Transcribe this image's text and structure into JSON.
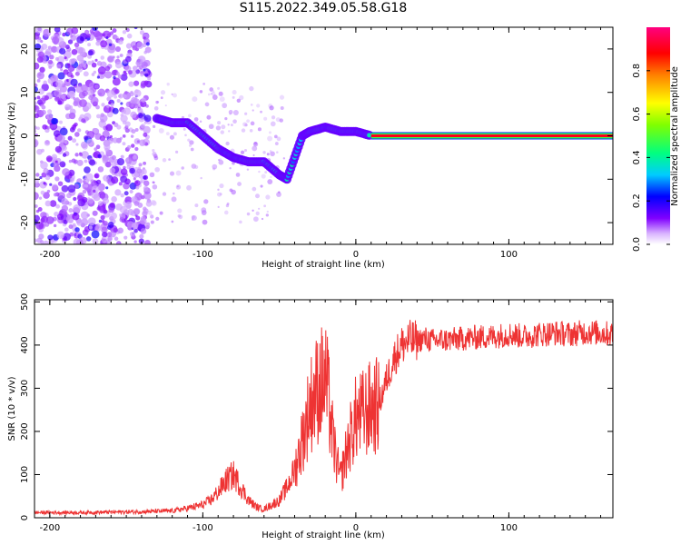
{
  "title": "S115.2022.349.05.58.G18",
  "chart_data": [
    {
      "type": "heatmap",
      "title": "S115.2022.349.05.58.G18",
      "xlabel": "Height of straight line (km)",
      "ylabel": "Frequency (Hz)",
      "xlim": [
        -210,
        168
      ],
      "ylim": [
        -25,
        25
      ],
      "xticks": [
        -200,
        -100,
        0,
        100
      ],
      "xtick_labels": [
        "-200",
        "-100",
        "0",
        "100"
      ],
      "yticks": [
        -20,
        -10,
        0,
        10,
        20
      ],
      "ytick_labels": [
        "-20",
        "-10",
        "0",
        "10",
        "20"
      ],
      "colorbar": {
        "label": "Normalized spectral amplitude",
        "range": [
          0,
          1
        ],
        "ticks": [
          0.0,
          0.2,
          0.4,
          0.6,
          0.8
        ],
        "tick_labels": [
          "0.0",
          "0.2",
          "0.4",
          "0.6",
          "0.8"
        ],
        "colors": [
          "#ffffff",
          "#8000ff",
          "#0000ff",
          "#00ffff",
          "#00ff00",
          "#ffff00",
          "#ff0000",
          "#ff00ff"
        ]
      },
      "ridge": [
        [
          -130,
          4
        ],
        [
          -120,
          3
        ],
        [
          -110,
          3
        ],
        [
          -100,
          0
        ],
        [
          -90,
          -3
        ],
        [
          -80,
          -5
        ],
        [
          -70,
          -6
        ],
        [
          -60,
          -6
        ],
        [
          -50,
          -9
        ],
        [
          -45,
          -10
        ],
        [
          -40,
          -5
        ],
        [
          -35,
          0
        ],
        [
          -30,
          1
        ],
        [
          -20,
          2
        ],
        [
          -10,
          1
        ],
        [
          0,
          1
        ],
        [
          10,
          0
        ],
        [
          30,
          0
        ],
        [
          60,
          0
        ],
        [
          100,
          0
        ],
        [
          168,
          0
        ]
      ],
      "grid": false
    },
    {
      "type": "line",
      "xlabel": "Height of straight line (km)",
      "ylabel": "SNR (10 * v/v)",
      "xlim": [
        -210,
        168
      ],
      "ylim": [
        0,
        505
      ],
      "xticks": [
        -200,
        -100,
        0,
        100
      ],
      "xtick_labels": [
        "-200",
        "-100",
        "0",
        "100"
      ],
      "yticks": [
        0,
        100,
        200,
        300,
        400,
        500
      ],
      "ytick_labels": [
        "0",
        "100",
        "200",
        "300",
        "400",
        "500"
      ],
      "color": "#ee3333",
      "x": [
        -210,
        -200,
        -180,
        -160,
        -140,
        -120,
        -110,
        -100,
        -95,
        -90,
        -85,
        -80,
        -75,
        -70,
        -65,
        -60,
        -55,
        -50,
        -45,
        -40,
        -35,
        -30,
        -25,
        -20,
        -18,
        -15,
        -12,
        -10,
        -5,
        0,
        5,
        10,
        15,
        20,
        25,
        30,
        35,
        40,
        45,
        50,
        60,
        70,
        80,
        90,
        100,
        110,
        120,
        130,
        140,
        150,
        160,
        168
      ],
      "y": [
        12,
        12,
        12,
        13,
        14,
        16,
        22,
        30,
        40,
        60,
        85,
        100,
        70,
        40,
        25,
        20,
        30,
        40,
        70,
        110,
        180,
        260,
        300,
        320,
        280,
        180,
        120,
        90,
        170,
        230,
        240,
        255,
        260,
        320,
        370,
        400,
        410,
        410,
        415,
        410,
        412,
        415,
        418,
        420,
        425,
        420,
        425,
        428,
        425,
        430,
        428,
        425
      ],
      "grid": false
    }
  ]
}
